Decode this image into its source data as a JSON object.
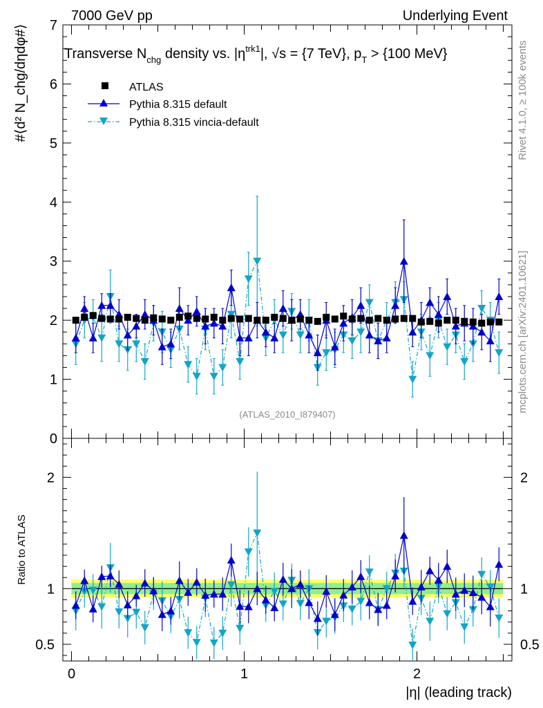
{
  "header": {
    "left": "7000 GeV pp",
    "right": "Underlying Event"
  },
  "plot_title": {
    "a": "Transverse N",
    "a_sub": "chg",
    "b": " density vs. |",
    "eta": "η",
    "eta_sup": "trk1",
    "c": "|, √s = {7 TeV}, p",
    "c_sub": "T",
    "d": " > {100 MeV}"
  },
  "watermark": "(ATLAS_2010_I879407)",
  "side_text": {
    "top": "Rivet 4.1.0, ≥ 100k events",
    "bottom": "mcplots.cern.ch [arXiv:2401.10621]"
  },
  "colors": {
    "atlas": "#000000",
    "default": "#0000cc",
    "vincia": "#11a5c7",
    "band_inner": "#90ee90",
    "band_outer": "#ffff66"
  },
  "chart_data": [
    {
      "type": "scatter",
      "panel": "main",
      "ylabel": "#⟨d² N_chg/dηdφ#⟩",
      "ylim": [
        0,
        7
      ],
      "yticks": [
        "0",
        "1",
        "2",
        "3",
        "4",
        "5",
        "6",
        "7"
      ],
      "xlim": [
        -0.05,
        2.55
      ],
      "legend": [
        "ATLAS",
        "Pythia 8.315 default",
        "Pythia 8.315 vincia-default"
      ],
      "legend_position": "top-left",
      "series": [
        {
          "name": "ATLAS",
          "marker": "square",
          "x": [
            0.025,
            0.075,
            0.125,
            0.175,
            0.225,
            0.275,
            0.325,
            0.375,
            0.425,
            0.475,
            0.525,
            0.575,
            0.625,
            0.675,
            0.725,
            0.775,
            0.825,
            0.875,
            0.925,
            0.975,
            1.025,
            1.075,
            1.125,
            1.175,
            1.225,
            1.275,
            1.325,
            1.375,
            1.425,
            1.475,
            1.525,
            1.575,
            1.625,
            1.675,
            1.725,
            1.775,
            1.825,
            1.875,
            1.925,
            1.975,
            2.025,
            2.075,
            2.125,
            2.175,
            2.225,
            2.275,
            2.325,
            2.375,
            2.425,
            2.475
          ],
          "y": [
            2.0,
            2.05,
            2.08,
            2.03,
            2.02,
            2.02,
            2.05,
            2.03,
            2.0,
            2.04,
            2.02,
            2.0,
            2.05,
            2.07,
            2.03,
            2.02,
            2.05,
            2.0,
            2.03,
            2.02,
            2.03,
            2.0,
            2.0,
            2.05,
            2.03,
            2.0,
            2.02,
            2.0,
            1.98,
            2.05,
            2.02,
            2.07,
            2.02,
            2.03,
            2.0,
            2.03,
            2.0,
            2.02,
            2.03,
            2.03,
            1.97,
            1.98,
            1.95,
            2.0,
            2.0,
            1.98,
            1.97,
            1.95,
            1.97,
            1.97
          ]
        },
        {
          "name": "Pythia 8.315 default",
          "marker": "triangle-up",
          "x": [
            0.025,
            0.075,
            0.125,
            0.175,
            0.225,
            0.275,
            0.325,
            0.375,
            0.425,
            0.475,
            0.525,
            0.575,
            0.625,
            0.675,
            0.725,
            0.775,
            0.825,
            0.875,
            0.925,
            0.975,
            1.025,
            1.075,
            1.125,
            1.175,
            1.225,
            1.275,
            1.325,
            1.375,
            1.425,
            1.475,
            1.525,
            1.575,
            1.625,
            1.675,
            1.725,
            1.775,
            1.825,
            1.875,
            1.925,
            1.975,
            2.025,
            2.075,
            2.125,
            2.175,
            2.225,
            2.275,
            2.325,
            2.375,
            2.425,
            2.475
          ],
          "y": [
            1.7,
            2.2,
            1.7,
            2.25,
            2.25,
            2.1,
            1.75,
            1.9,
            2.1,
            2.0,
            1.55,
            1.6,
            2.2,
            2.0,
            2.15,
            1.9,
            1.95,
            1.9,
            2.55,
            1.7,
            1.7,
            2.0,
            1.8,
            1.7,
            2.2,
            2.0,
            2.1,
            1.75,
            1.45,
            2.0,
            1.55,
            1.95,
            2.05,
            2.25,
            1.75,
            1.65,
            1.7,
            2.25,
            3.0,
            1.8,
            2.0,
            2.3,
            2.1,
            2.4,
            1.9,
            1.95,
            1.9,
            1.8,
            1.65,
            2.4
          ],
          "err": [
            0.25,
            0.2,
            0.25,
            0.2,
            0.2,
            0.25,
            0.25,
            0.2,
            0.25,
            0.25,
            0.3,
            0.25,
            0.35,
            0.25,
            0.25,
            0.3,
            0.25,
            0.3,
            0.3,
            0.3,
            0.3,
            0.3,
            0.25,
            0.25,
            0.3,
            0.35,
            0.25,
            0.3,
            0.3,
            0.3,
            0.3,
            0.3,
            0.3,
            0.3,
            0.3,
            0.3,
            0.25,
            0.3,
            0.7,
            0.25,
            0.3,
            0.25,
            0.3,
            0.3,
            0.3,
            0.3,
            0.3,
            0.3,
            0.35,
            0.3
          ]
        },
        {
          "name": "Pythia 8.315 vincia-default",
          "marker": "triangle-down",
          "x": [
            0.025,
            0.075,
            0.125,
            0.175,
            0.225,
            0.275,
            0.325,
            0.375,
            0.425,
            0.475,
            0.525,
            0.575,
            0.625,
            0.675,
            0.725,
            0.775,
            0.825,
            0.875,
            0.925,
            0.975,
            1.025,
            1.075,
            1.125,
            1.175,
            1.225,
            1.275,
            1.325,
            1.375,
            1.425,
            1.475,
            1.525,
            1.575,
            1.625,
            1.675,
            1.725,
            1.775,
            1.825,
            1.875,
            1.925,
            1.975,
            2.025,
            2.075,
            2.125,
            2.175,
            2.225,
            2.275,
            2.325,
            2.375,
            2.425,
            2.475
          ],
          "y": [
            1.6,
            2.0,
            2.05,
            1.7,
            2.4,
            1.6,
            1.5,
            1.6,
            1.3,
            1.95,
            1.8,
            1.5,
            1.85,
            1.25,
            1.05,
            1.85,
            1.05,
            1.2,
            2.1,
            1.3,
            2.7,
            3.0,
            1.7,
            2.0,
            1.75,
            2.15,
            1.75,
            2.0,
            1.2,
            1.45,
            1.5,
            1.75,
            1.65,
            1.8,
            2.3,
            1.65,
            2.0,
            2.3,
            2.35,
            1.0,
            1.8,
            1.4,
            2.0,
            1.55,
            1.75,
            1.3,
            1.6,
            2.2,
            2.0,
            1.45
          ],
          "err": [
            0.35,
            0.3,
            0.3,
            0.4,
            0.45,
            0.3,
            0.35,
            0.3,
            0.3,
            0.3,
            0.35,
            0.3,
            0.35,
            0.3,
            0.3,
            0.35,
            0.3,
            0.3,
            0.4,
            0.3,
            0.45,
            1.1,
            0.3,
            0.35,
            0.3,
            0.3,
            0.3,
            0.35,
            0.3,
            0.3,
            0.3,
            0.3,
            0.3,
            0.35,
            0.3,
            0.3,
            0.3,
            0.35,
            0.3,
            0.3,
            0.3,
            0.35,
            0.3,
            0.3,
            0.3,
            0.3,
            0.3,
            0.3,
            0.3,
            0.35
          ]
        }
      ]
    },
    {
      "type": "scatter",
      "panel": "ratio",
      "ylabel": "Ratio to ATLAS",
      "xlabel": "|η| (leading track)",
      "ylim": [
        0.35,
        2.35
      ],
      "yticks": [
        "0.5",
        "1",
        "2"
      ],
      "xticks": [
        "0",
        "1",
        "2"
      ],
      "xlim": [
        -0.05,
        2.55
      ],
      "band_inner": [
        0.95,
        1.05
      ],
      "band_outer": [
        0.92,
        1.08
      ]
    }
  ]
}
